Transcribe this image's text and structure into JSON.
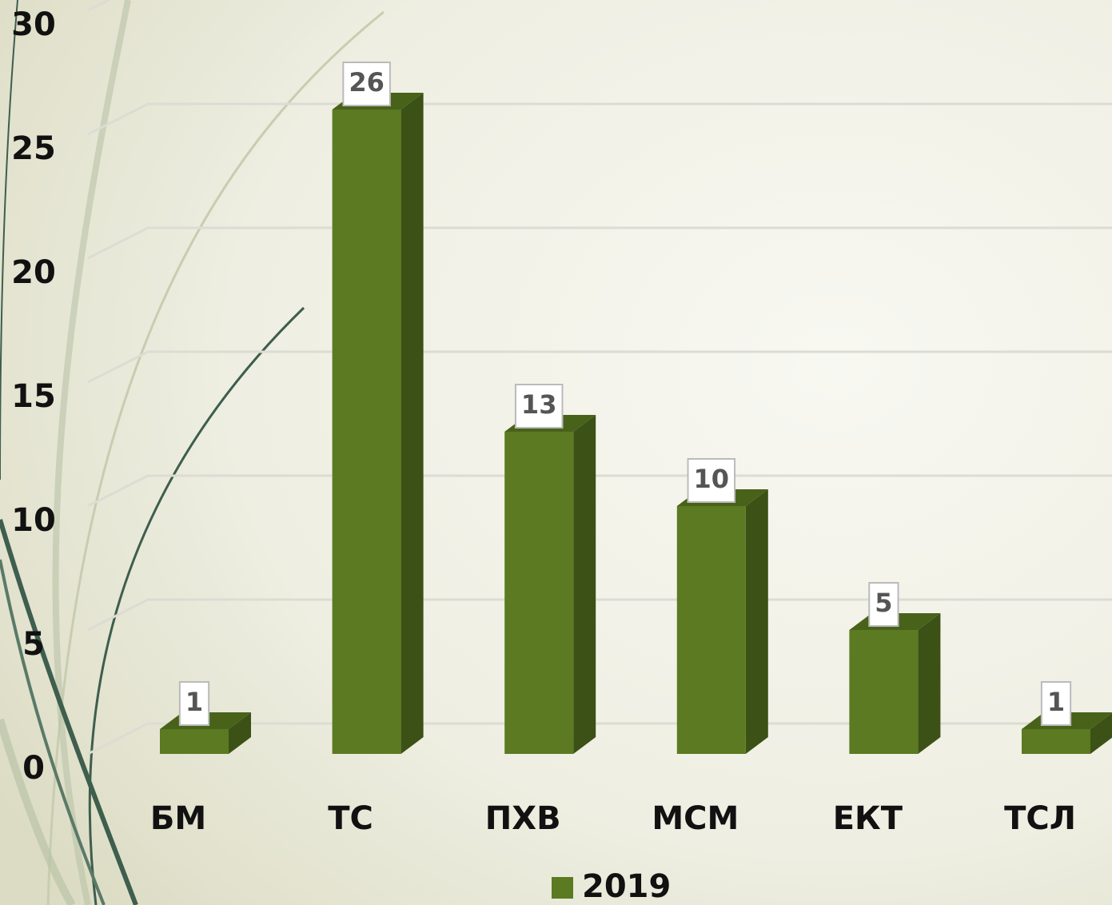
{
  "chart_data": {
    "type": "bar",
    "categories": [
      "БМ",
      "ТС",
      "ПХВ",
      "МСМ",
      "ЕКТ",
      "ТСЛ"
    ],
    "series": [
      {
        "name": "2019",
        "color": "#5b7a21",
        "values": [
          1,
          26,
          13,
          10,
          5,
          1
        ]
      }
    ],
    "ylim": [
      0,
      30
    ],
    "yticks": [
      0,
      5,
      10,
      15,
      20,
      25,
      30
    ],
    "grid": true
  }
}
